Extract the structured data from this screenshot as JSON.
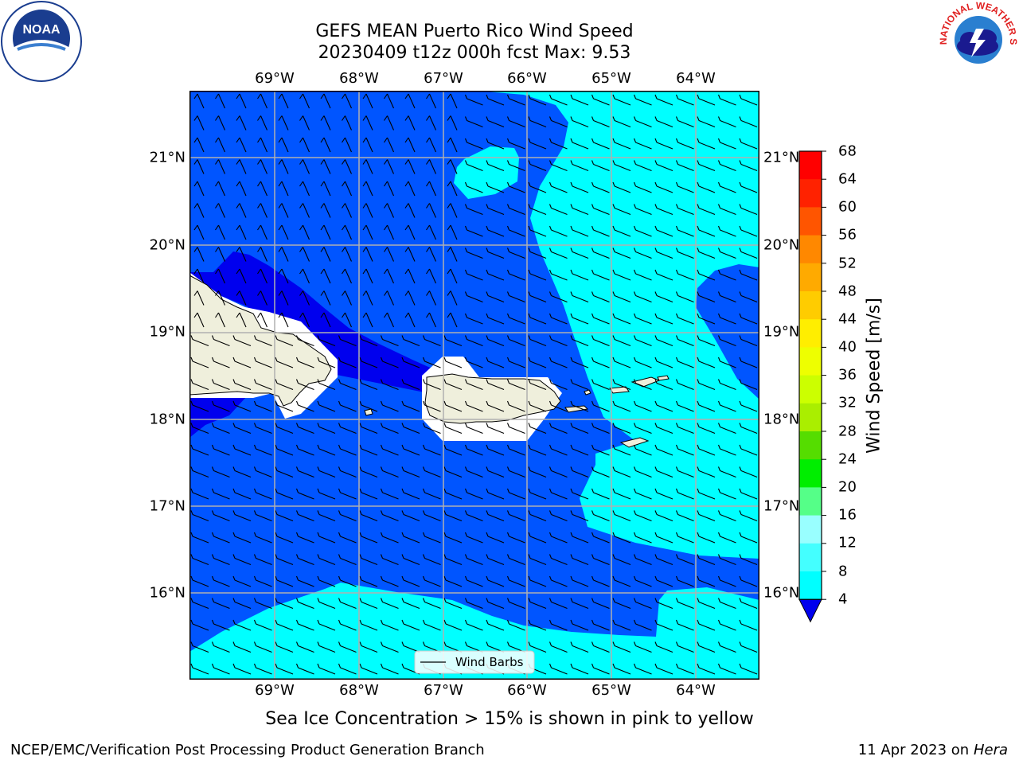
{
  "title": {
    "line1": "GEFS MEAN Puerto Rico Wind Speed",
    "line2": "20230409 t12z 000h fcst   Max: 9.53"
  },
  "map": {
    "lon_labels": [
      "69°W",
      "68°W",
      "67°W",
      "66°W",
      "65°W",
      "64°W"
    ],
    "lat_labels": [
      "21°N",
      "20°N",
      "19°N",
      "18°N",
      "17°N",
      "16°N"
    ],
    "legend_label": "Wind Barbs",
    "colors": {
      "band_4_8": "#0055ff",
      "band_8_12": "#00ffff",
      "below_4": "#0000ee",
      "land": "#efefdc",
      "gridline": "#b0b0b0"
    }
  },
  "colorbar": {
    "title": "Wind Speed [m/s]",
    "ticks": [
      "68",
      "64",
      "60",
      "56",
      "52",
      "48",
      "44",
      "40",
      "36",
      "32",
      "28",
      "24",
      "20",
      "16",
      "12",
      "8",
      "4"
    ],
    "colors": [
      "#ff0000",
      "#ff2200",
      "#ff5500",
      "#ff8800",
      "#ffaa00",
      "#ffcc00",
      "#ffee00",
      "#eeff00",
      "#ccff00",
      "#aaee00",
      "#55dd00",
      "#00ee00",
      "#55ff88",
      "#99ffff",
      "#44ffff",
      "#00ffff",
      "#0055ff"
    ],
    "under_color": "#0000ee"
  },
  "note": "Sea Ice Concentration > 15% is shown in pink to yellow",
  "footer": {
    "left": "NCEP/EMC/Verification Post Processing Product Generation Branch",
    "date": "11 Apr 2023 on",
    "machine": "Hera"
  },
  "logos": {
    "noaa": "NOAA",
    "nws": "NATIONAL WEATHER SERVICE"
  }
}
